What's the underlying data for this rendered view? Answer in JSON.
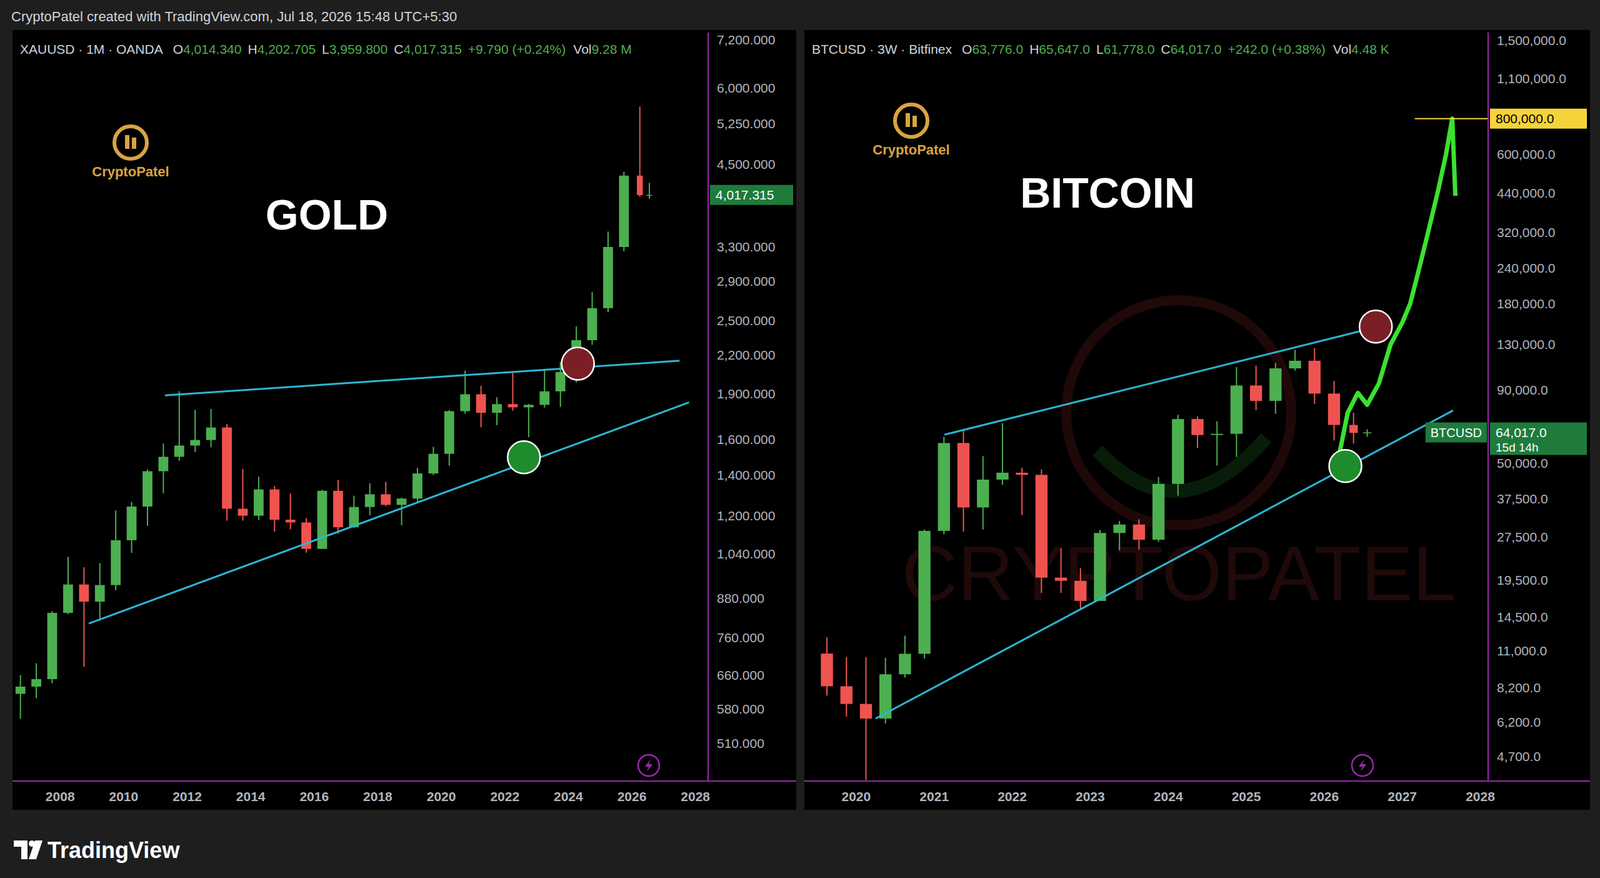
{
  "page": {
    "credit": "CryptoPatel created with TradingView.com, Jul 18, 2026 15:48 UTC+5:30",
    "footer": "TradingView"
  },
  "chart_data": [
    {
      "type": "candlestick",
      "title": "GOLD",
      "symbol": "XAUUSD · 1M · OANDA",
      "quote_labels": [
        "O",
        "H",
        "L",
        "C"
      ],
      "quote_values": [
        "4,014.340",
        "4,202.705",
        "3,959.800",
        "4,017.315"
      ],
      "change": "+9.790 (+0.24%)",
      "volume_label": "Vol",
      "volume": "9.28 M",
      "logo_text": "CryptoPatel",
      "log": "y",
      "grid": false,
      "xlim": [
        2006.5,
        2028.4
      ],
      "xticks": [
        2008,
        2010,
        2012,
        2014,
        2016,
        2018,
        2020,
        2022,
        2024,
        2026,
        2028
      ],
      "ylim": [
        443,
        7400
      ],
      "yticks": [
        {
          "value": 510,
          "label": "510.000"
        },
        {
          "value": 580,
          "label": "580.000"
        },
        {
          "value": 660,
          "label": "660.000"
        },
        {
          "value": 760,
          "label": "760.000"
        },
        {
          "value": 880,
          "label": "880.000"
        },
        {
          "value": 1040,
          "label": "1,040.000"
        },
        {
          "value": 1200,
          "label": "1,200.000"
        },
        {
          "value": 1400,
          "label": "1,400.000"
        },
        {
          "value": 1600,
          "label": "1,600.000"
        },
        {
          "value": 1900,
          "label": "1,900.000"
        },
        {
          "value": 2200,
          "label": "2,200.000"
        },
        {
          "value": 2500,
          "label": "2,500.000"
        },
        {
          "value": 2900,
          "label": "2,900.000"
        },
        {
          "value": 3300,
          "label": "3,300.000"
        },
        {
          "value": 4500,
          "label": "4,500.000"
        },
        {
          "value": 5250,
          "label": "5,250.000"
        },
        {
          "value": 6000,
          "label": "6,000.000"
        },
        {
          "value": 7200,
          "label": "7,200.000"
        }
      ],
      "x": [
        2006.75,
        2007.25,
        2007.75,
        2008.25,
        2008.75,
        2009.25,
        2009.75,
        2010.25,
        2010.75,
        2011.25,
        2011.75,
        2012.25,
        2012.75,
        2013.25,
        2013.75,
        2014.25,
        2014.75,
        2015.25,
        2015.75,
        2016.25,
        2016.75,
        2017.25,
        2017.75,
        2018.25,
        2018.75,
        2019.25,
        2019.75,
        2020.25,
        2020.75,
        2021.25,
        2021.75,
        2022.25,
        2022.75,
        2023.25,
        2023.75,
        2024.25,
        2024.75,
        2025.25,
        2025.75,
        2026.25,
        2026.55
      ],
      "series": [
        {
          "name": "XAUUSD",
          "type": "candlestick",
          "open": [
            615,
            632,
            650,
            834,
            928,
            870,
            926,
            1096,
            1244,
            1421,
            1500,
            1565,
            1598,
            1675,
            1234,
            1202,
            1327,
            1184,
            1172,
            1061,
            1320,
            1151,
            1242,
            1303,
            1252,
            1282,
            1409,
            1517,
            1781,
            1898,
            1770,
            1829,
            1807,
            1824,
            1919,
            2063,
            2326,
            2624,
            3303,
            4320,
            4014.34
          ],
          "high": [
            660,
            690,
            840,
            1030,
            990,
            1005,
            1226,
            1266,
            1430,
            1577,
            1920,
            1790,
            1796,
            1696,
            1433,
            1392,
            1345,
            1307,
            1191,
            1325,
            1375,
            1296,
            1357,
            1366,
            1287,
            1439,
            1557,
            1788,
            2075,
            1959,
            1877,
            2070,
            1830,
            2082,
            2145,
            2450,
            2790,
            3500,
            4380,
            5600,
            4202.705
          ],
          "low": [
            560,
            605,
            640,
            830,
            681,
            810,
            908,
            1045,
            1157,
            1308,
            1478,
            1527,
            1555,
            1180,
            1180,
            1182,
            1132,
            1142,
            1046,
            1061,
            1123,
            1147,
            1204,
            1246,
            1160,
            1266,
            1400,
            1451,
            1764,
            1677,
            1690,
            1784,
            1615,
            1805,
            1810,
            1984,
            2286,
            2584,
            3250,
            3990,
            3959.8
          ],
          "close": [
            632,
            650,
            834,
            928,
            870,
            926,
            1096,
            1244,
            1421,
            1500,
            1565,
            1598,
            1675,
            1234,
            1202,
            1327,
            1184,
            1172,
            1061,
            1320,
            1151,
            1242,
            1303,
            1252,
            1282,
            1409,
            1517,
            1781,
            1898,
            1770,
            1829,
            1807,
            1824,
            1919,
            2063,
            2326,
            2624,
            3303,
            4320,
            4014,
            4017.315
          ]
        }
      ],
      "trend_lines": [
        {
          "color": "#2bb6d4",
          "x": [
            2011.3,
            2027.5
          ],
          "values": [
            1890,
            2153
          ]
        },
        {
          "color": "#2bb6d4",
          "x": [
            2008.9,
            2027.8
          ],
          "values": [
            801,
            1841
          ]
        }
      ],
      "markers": [
        {
          "x": 2024.3,
          "value": 2130,
          "color": "#7b1f27"
        },
        {
          "x": 2022.6,
          "value": 1497,
          "color": "#1e8b2c"
        }
      ],
      "price_labels": [
        {
          "value": 4017.315,
          "label": "4,017.315",
          "color": "#1e7b3c"
        }
      ]
    },
    {
      "type": "candlestick",
      "title": "BITCOIN",
      "symbol": "BTCUSD · 3W · Bitfinex",
      "quote_labels": [
        "O",
        "H",
        "L",
        "C"
      ],
      "quote_values": [
        "63,776.0",
        "65,647.0",
        "61,778.0",
        "64,017.0"
      ],
      "change": "+242.0 (+0.38%)",
      "volume_label": "Vol",
      "volume": "4.48 K",
      "logo_text": "CryptoPatel",
      "watermark": "CRYPTOPATEL",
      "log": "y",
      "grid": false,
      "xlim": [
        2019.36,
        2028.1
      ],
      "xticks": [
        2020,
        2021,
        2022,
        2023,
        2024,
        2025,
        2026,
        2027,
        2028
      ],
      "ylim": [
        3870,
        1600000
      ],
      "yticks": [
        {
          "value": 4700,
          "label": "4,700.0"
        },
        {
          "value": 6200,
          "label": "6,200.0"
        },
        {
          "value": 8200,
          "label": "8,200.0"
        },
        {
          "value": 11000,
          "label": "11,000.0"
        },
        {
          "value": 14500,
          "label": "14,500.0"
        },
        {
          "value": 19500,
          "label": "19,500.0"
        },
        {
          "value": 27500,
          "label": "27,500.0"
        },
        {
          "value": 37500,
          "label": "37,500.0"
        },
        {
          "value": 50000,
          "label": "50,000.0"
        },
        {
          "value": 90000,
          "label": "90,000.0"
        },
        {
          "value": 130000,
          "label": "130,000.0"
        },
        {
          "value": 180000,
          "label": "180,000.0"
        },
        {
          "value": 240000,
          "label": "240,000.0"
        },
        {
          "value": 320000,
          "label": "320,000.0"
        },
        {
          "value": 440000,
          "label": "440,000.0"
        },
        {
          "value": 600000,
          "label": "600,000.0"
        },
        {
          "value": 1100000,
          "label": "1,100,000.0"
        },
        {
          "value": 1500000,
          "label": "1,500,000.0"
        }
      ],
      "x": [
        2019.625,
        2019.875,
        2020.125,
        2020.375,
        2020.625,
        2020.875,
        2021.125,
        2021.375,
        2021.625,
        2021.875,
        2022.125,
        2022.375,
        2022.625,
        2022.875,
        2023.125,
        2023.375,
        2023.625,
        2023.875,
        2024.125,
        2024.375,
        2024.625,
        2024.875,
        2025.125,
        2025.375,
        2025.625,
        2025.875,
        2026.125,
        2026.375,
        2026.55
      ],
      "series": [
        {
          "name": "BTCUSD",
          "type": "candlestick",
          "open": [
            10800,
            8300,
            7200,
            6400,
            9140,
            10780,
            28990,
            58800,
            35000,
            43800,
            46300,
            45500,
            19900,
            19400,
            16500,
            28500,
            30500,
            27000,
            42300,
            71300,
            62700,
            63300,
            93400,
            82500,
            107200,
            114000,
            87500,
            68000,
            63776
          ],
          "high": [
            12300,
            10500,
            10500,
            10430,
            12470,
            29300,
            61800,
            64900,
            52900,
            69000,
            48200,
            47500,
            25200,
            21500,
            29200,
            31400,
            31800,
            44700,
            73800,
            72800,
            70000,
            108300,
            109600,
            111900,
            124400,
            126200,
            97000,
            75000,
            65647
          ],
          "low": [
            7700,
            6500,
            3900,
            6150,
            8900,
            10370,
            28200,
            28800,
            29300,
            42000,
            32900,
            17600,
            17600,
            15500,
            16500,
            24800,
            24900,
            26500,
            38500,
            56500,
            49000,
            52600,
            76600,
            74400,
            105300,
            80600,
            60000,
            58500,
            61778
          ],
          "close": [
            8300,
            7200,
            6400,
            9140,
            10780,
            28990,
            58800,
            35000,
            43800,
            46300,
            45500,
            19900,
            19400,
            16500,
            28500,
            30500,
            27000,
            42300,
            71300,
            62700,
            63300,
            93400,
            82500,
            107200,
            114000,
            87500,
            68000,
            63776,
            64017
          ]
        },
        {
          "type": "line",
          "color": "#3be12f",
          "x": [
            2026.2,
            2026.3,
            2026.43,
            2026.55,
            2026.7,
            2026.85,
            2027.0,
            2027.1,
            2027.2,
            2027.33,
            2027.46,
            2027.56,
            2027.64,
            2027.68
          ],
          "values": [
            55000,
            75000,
            88000,
            80000,
            95000,
            130000,
            155000,
            180000,
            230000,
            320000,
            450000,
            600000,
            800000,
            430000
          ]
        }
      ],
      "trend_lines": [
        {
          "color": "#2bb6d4",
          "x": [
            2021.13,
            2026.85
          ],
          "values": [
            62850,
            153700
          ]
        },
        {
          "color": "#2bb6d4",
          "x": [
            2020.25,
            2027.65
          ],
          "values": [
            6400,
            76400
          ]
        }
      ],
      "markers": [
        {
          "x": 2026.66,
          "value": 150000,
          "color": "#7b1f27"
        },
        {
          "x": 2026.27,
          "value": 48840,
          "color": "#1e8b2c"
        }
      ],
      "level_lines": [
        {
          "value": 800000,
          "label": "800,000.0",
          "color": "#f5d33b",
          "x": 2027.16
        }
      ],
      "price_labels": [
        {
          "value": 64017,
          "label": "64,017.0",
          "symbol": "BTCUSD",
          "countdown": "15d 14h",
          "color": "#1e7b3c"
        }
      ]
    }
  ]
}
